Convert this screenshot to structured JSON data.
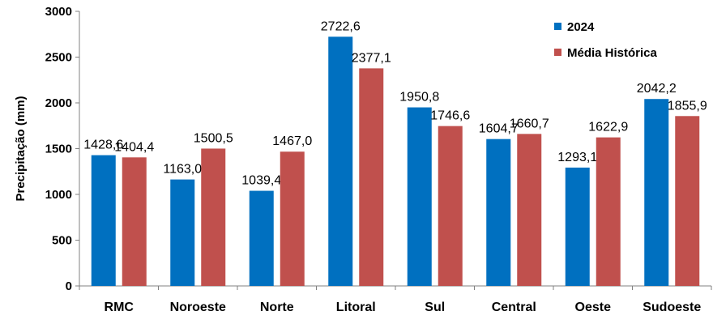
{
  "chart_data": {
    "type": "bar",
    "ylabel": "Precipitação (mm)",
    "ylim": [
      0,
      3000
    ],
    "yticks": [
      0,
      500,
      1000,
      1500,
      2000,
      2500,
      3000
    ],
    "grid": false,
    "legend_position": "top-right",
    "categories": [
      "RMC",
      "Noroeste",
      "Norte",
      "Litoral",
      "Sul",
      "Central",
      "Oeste",
      "Sudoeste"
    ],
    "series": [
      {
        "name": "2024",
        "color": "#0070C0",
        "values": [
          1428.6,
          1163.0,
          1039.4,
          2722.6,
          1950.8,
          1604.7,
          1293.1,
          2042.2
        ],
        "labels": [
          "1428,6",
          "1163,0",
          "1039,4",
          "2722,6",
          "1950,8",
          "1604,7",
          "1293,1",
          "2042,2"
        ]
      },
      {
        "name": "Média Histórica",
        "color": "#C0504D",
        "values": [
          1404.4,
          1500.5,
          1467.0,
          2377.1,
          1746.6,
          1660.7,
          1622.9,
          1855.9
        ],
        "labels": [
          "1404,4",
          "1500,5",
          "1467,0",
          "2377,1",
          "1746,6",
          "1660,7",
          "1622,9",
          "1855,9"
        ]
      }
    ]
  }
}
